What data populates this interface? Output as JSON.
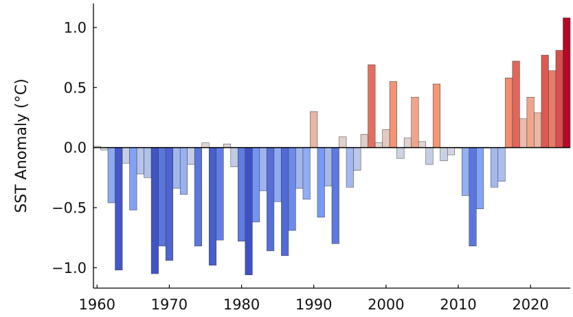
{
  "chart_data": {
    "type": "bar",
    "title": "",
    "xlabel": "",
    "ylabel": "SST Anomaly (°C)",
    "xlim": [
      1959.5,
      2025.5
    ],
    "ylim": [
      -1.17,
      1.2
    ],
    "grid": false,
    "legend": "none",
    "colormap": "coolwarm",
    "x_ticks": [
      1960,
      1970,
      1980,
      1990,
      2000,
      2010,
      2020
    ],
    "x_tick_labels": [
      "1960",
      "1970",
      "1980",
      "1990",
      "2000",
      "2010",
      "2020"
    ],
    "y_ticks": [
      -1.0,
      -0.5,
      0.0,
      0.5,
      1.0
    ],
    "y_tick_labels": [
      "−1.0",
      "−0.5",
      "0.0",
      "0.5",
      "1.0"
    ],
    "years": [
      1960,
      1961,
      1962,
      1963,
      1964,
      1965,
      1966,
      1967,
      1968,
      1969,
      1970,
      1971,
      1972,
      1973,
      1974,
      1975,
      1976,
      1977,
      1978,
      1979,
      1980,
      1981,
      1982,
      1983,
      1984,
      1985,
      1986,
      1987,
      1988,
      1989,
      1990,
      1991,
      1992,
      1993,
      1994,
      1995,
      1996,
      1997,
      1998,
      1999,
      2000,
      2001,
      2002,
      2003,
      2004,
      2005,
      2006,
      2007,
      2008,
      2009,
      2010,
      2011,
      2012,
      2013,
      2014,
      2015,
      2016,
      2017,
      2018,
      2019,
      2020,
      2021,
      2022,
      2023,
      2024,
      2025
    ],
    "values": [
      0.01,
      -0.02,
      -0.46,
      -1.02,
      -0.13,
      -0.52,
      -0.22,
      -0.25,
      -1.05,
      -0.82,
      -0.94,
      -0.34,
      -0.39,
      -0.14,
      -0.82,
      0.04,
      -0.98,
      -0.77,
      0.03,
      -0.16,
      -0.78,
      -1.06,
      -0.62,
      -0.36,
      -0.86,
      -0.45,
      -0.9,
      -0.69,
      -0.34,
      -0.43,
      0.3,
      -0.58,
      -0.32,
      -0.8,
      0.09,
      -0.33,
      -0.19,
      0.11,
      0.69,
      0.04,
      0.15,
      0.55,
      -0.09,
      0.08,
      0.42,
      0.05,
      -0.14,
      0.53,
      -0.11,
      -0.06,
      0.0,
      -0.4,
      -0.82,
      -0.51,
      0.0,
      -0.33,
      -0.28,
      0.58,
      0.72,
      0.24,
      0.42,
      0.29,
      0.77,
      0.64,
      0.81,
      1.08
    ]
  }
}
